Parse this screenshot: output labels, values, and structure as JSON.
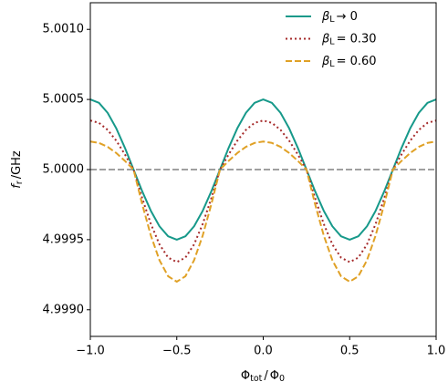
{
  "chart_data": {
    "type": "line",
    "xlabel": {
      "a": "Φ",
      "a_sub": "tot",
      "mid": "/",
      "b": "Φ",
      "b_sub": "0"
    },
    "ylabel": {
      "a": "f",
      "a_sub": "r",
      "rest": "/GHz"
    },
    "xlim": [
      -1,
      1
    ],
    "ylim": [
      4.99881,
      5.00119
    ],
    "xticks": [
      {
        "value": -1,
        "label": "−1.0"
      },
      {
        "value": -0.5,
        "label": "−0.5"
      },
      {
        "value": 0,
        "label": "0.0"
      },
      0.5,
      {
        "value": 1,
        "label": "1.0"
      }
    ],
    "yticks": [
      {
        "value": 4.999,
        "label": "4.9990"
      },
      {
        "value": 4.9995,
        "label": "4.9995"
      },
      {
        "value": 5.0,
        "label": "5.0000"
      },
      {
        "value": 5.0005,
        "label": "5.0005"
      },
      {
        "value": 5.001,
        "label": "5.0010"
      }
    ],
    "legend": "upper right",
    "reference_line": {
      "value": 5.0,
      "color": "#a0a0a0"
    },
    "x": [
      -1,
      -0.95,
      -0.9,
      -0.85,
      -0.8,
      -0.75,
      -0.7,
      -0.65,
      -0.6,
      -0.55,
      -0.5,
      -0.45,
      -0.4,
      -0.35,
      -0.3,
      -0.25,
      -0.2,
      -0.15,
      -0.1,
      -0.05,
      0,
      0.05,
      0.1,
      0.15,
      0.2,
      0.25,
      0.3,
      0.35,
      0.4,
      0.45,
      0.5,
      0.55,
      0.6,
      0.65,
      0.7,
      0.75,
      0.8,
      0.85,
      0.9,
      0.95,
      1
    ],
    "series": [
      {
        "name": {
          "symbol": "β",
          "sub": "L",
          "rest": "→ 0"
        },
        "color": "#17998a",
        "style": "solid",
        "values": [
          5.0005,
          5.000476,
          5.000405,
          5.000294,
          5.000155,
          5.0,
          4.999845,
          4.999706,
          4.999595,
          4.999524,
          4.9995,
          4.999524,
          4.999595,
          4.999706,
          4.999845,
          5.0,
          5.000155,
          5.000294,
          5.000405,
          5.000476,
          5.0005,
          5.000476,
          5.000405,
          5.000294,
          5.000155,
          5.0,
          4.999845,
          4.999706,
          4.999595,
          4.999524,
          4.9995,
          4.999524,
          4.999595,
          4.999706,
          4.999845,
          5.0,
          5.000155,
          5.000294,
          5.000405,
          5.000476,
          5.0005
        ]
      },
      {
        "name": {
          "symbol": "β",
          "sub": "L",
          "rest": "= 0.30"
        },
        "color": "#a52a2a",
        "style": "dotted",
        "values": [
          5.00035,
          5.000333,
          5.000283,
          5.000206,
          5.000108,
          5.0,
          4.999796,
          4.999612,
          4.999466,
          4.999372,
          4.99934,
          4.999372,
          4.999466,
          4.999612,
          4.999796,
          5.0,
          5.000108,
          5.000206,
          5.000283,
          5.000333,
          5.00035,
          5.000333,
          5.000283,
          5.000206,
          5.000108,
          5.0,
          4.999796,
          4.999612,
          4.999466,
          4.999372,
          4.99934,
          4.999372,
          4.999466,
          4.999612,
          4.999796,
          5.0,
          5.000108,
          5.000206,
          5.000283,
          5.000333,
          5.00035
        ]
      },
      {
        "name": {
          "symbol": "β",
          "sub": "L",
          "rest": "= 0.60"
        },
        "color": "#e0a126",
        "style": "dashed",
        "values": [
          5.0002,
          5.00019,
          5.000162,
          5.000118,
          5.000062,
          5.0,
          4.999753,
          4.99953,
          4.999353,
          4.999239,
          4.9992,
          4.999239,
          4.999353,
          4.99953,
          4.999753,
          5.0,
          5.000062,
          5.000118,
          5.000162,
          5.00019,
          5.0002,
          5.00019,
          5.000162,
          5.000118,
          5.000062,
          5.0,
          4.999753,
          4.99953,
          4.999353,
          4.999239,
          4.9992,
          4.999239,
          4.999353,
          4.99953,
          4.999753,
          5.0,
          5.000062,
          5.000118,
          5.000162,
          5.00019,
          5.0002
        ]
      }
    ]
  }
}
